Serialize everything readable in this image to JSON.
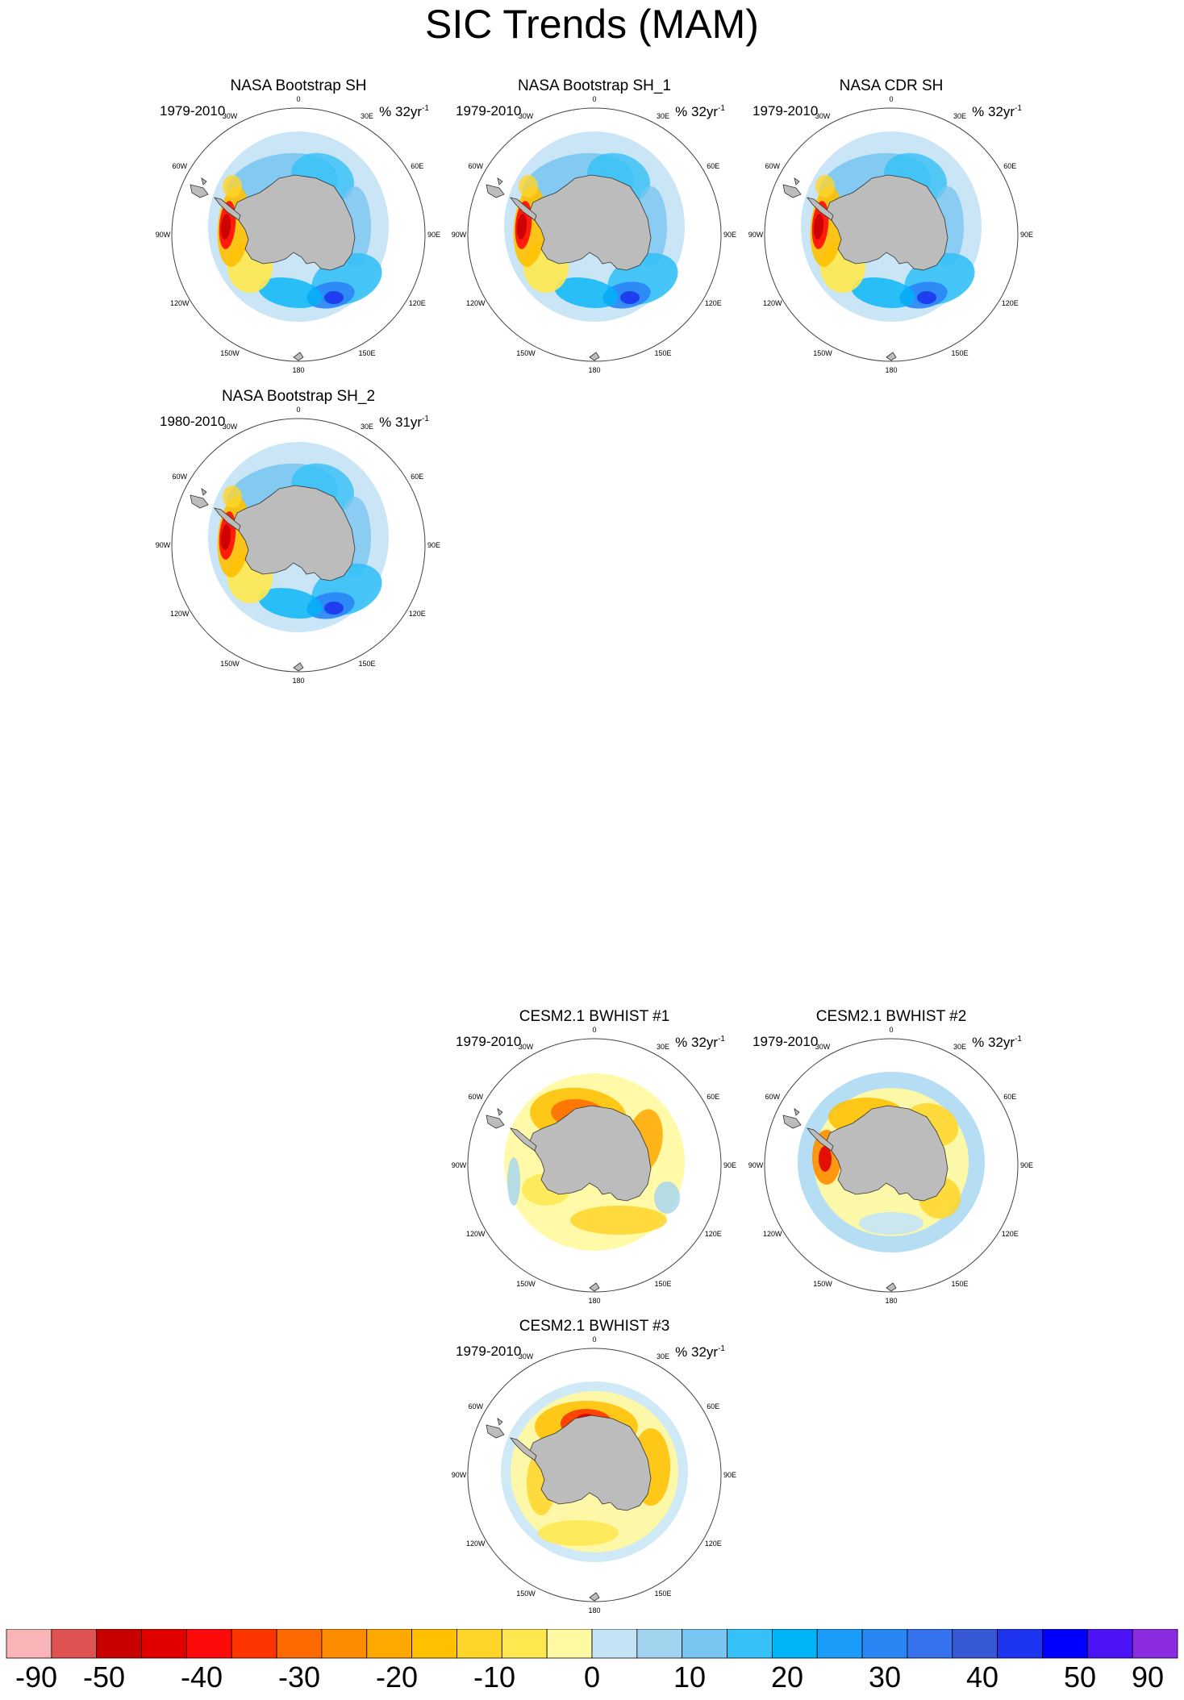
{
  "title": "SIC Trends (MAM)",
  "units_base": "%",
  "units_exp": "-1",
  "lon_labels": [
    "0",
    "30E",
    "60E",
    "90E",
    "120E",
    "150E",
    "180",
    "150W",
    "120W",
    "90W",
    "60W",
    "30W"
  ],
  "panels": [
    {
      "title": "NASA Bootstrap SH",
      "period": "1979-2010",
      "units_value": "32yr",
      "kind": "obs"
    },
    {
      "title": "NASA Bootstrap SH_1",
      "period": "1979-2010",
      "units_value": "32yr",
      "kind": "obs"
    },
    {
      "title": "NASA CDR SH",
      "period": "1979-2010",
      "units_value": "32yr",
      "kind": "obs"
    },
    {
      "title": "NASA Bootstrap SH_2",
      "period": "1980-2010",
      "units_value": "31yr",
      "kind": "obs"
    },
    {
      "title": "CESM2.1 BWHIST #1",
      "period": "1979-2010",
      "units_value": "32yr",
      "kind": "model1"
    },
    {
      "title": "CESM2.1 BWHIST #2",
      "period": "1979-2010",
      "units_value": "32yr",
      "kind": "model2"
    },
    {
      "title": "CESM2.1 BWHIST #3",
      "period": "1979-2010",
      "units_value": "32yr",
      "kind": "model3"
    }
  ],
  "colorbar": {
    "colors": [
      "#f9b4b8",
      "#e05353",
      "#c80000",
      "#e00000",
      "#ff0a0a",
      "#ff3500",
      "#ff6a00",
      "#ff8c00",
      "#ffa800",
      "#ffc000",
      "#ffd52a",
      "#ffe84f",
      "#fff9a3",
      "#c4e3f5",
      "#a2d4f0",
      "#7ac6f2",
      "#35c0f7",
      "#00b4f8",
      "#1c9cfa",
      "#2a85f5",
      "#3572ed",
      "#3657d6",
      "#1d35f0",
      "#0000ff",
      "#4b13f5",
      "#8a2be2"
    ],
    "labels": [
      "-90",
      "-50",
      "-40",
      "-30",
      "-20",
      "-10",
      "0",
      "10",
      "20",
      "30",
      "40",
      "50",
      "90"
    ]
  },
  "colors": {
    "land": "#bcbcbc",
    "coast": "#333333",
    "frame": "#444444"
  }
}
